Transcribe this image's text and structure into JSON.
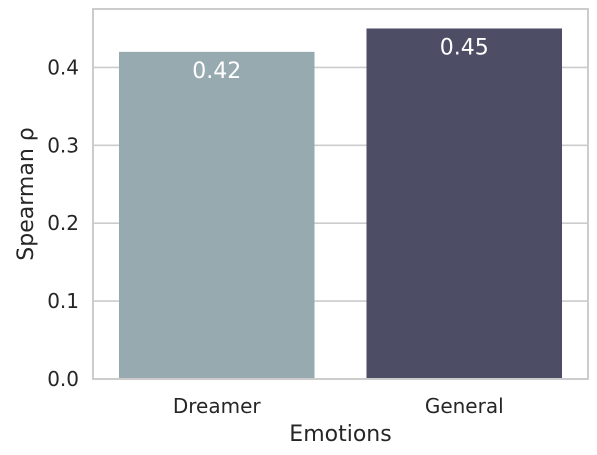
{
  "chart_data": {
    "type": "bar",
    "categories": [
      "Dreamer",
      "General"
    ],
    "values": [
      0.42,
      0.45
    ],
    "data_labels": [
      "0.42",
      "0.45"
    ],
    "colors": [
      "#97aab0",
      "#4d4d65"
    ],
    "xlabel": "Emotions",
    "ylabel": "Spearman ρ",
    "ylim": [
      0,
      0.475
    ],
    "yticks": [
      0.0,
      0.1,
      0.2,
      0.3,
      0.4
    ],
    "ytick_labels": [
      "0.0",
      "0.1",
      "0.2",
      "0.3",
      "0.4"
    ],
    "grid": true,
    "grid_axis": "y"
  }
}
